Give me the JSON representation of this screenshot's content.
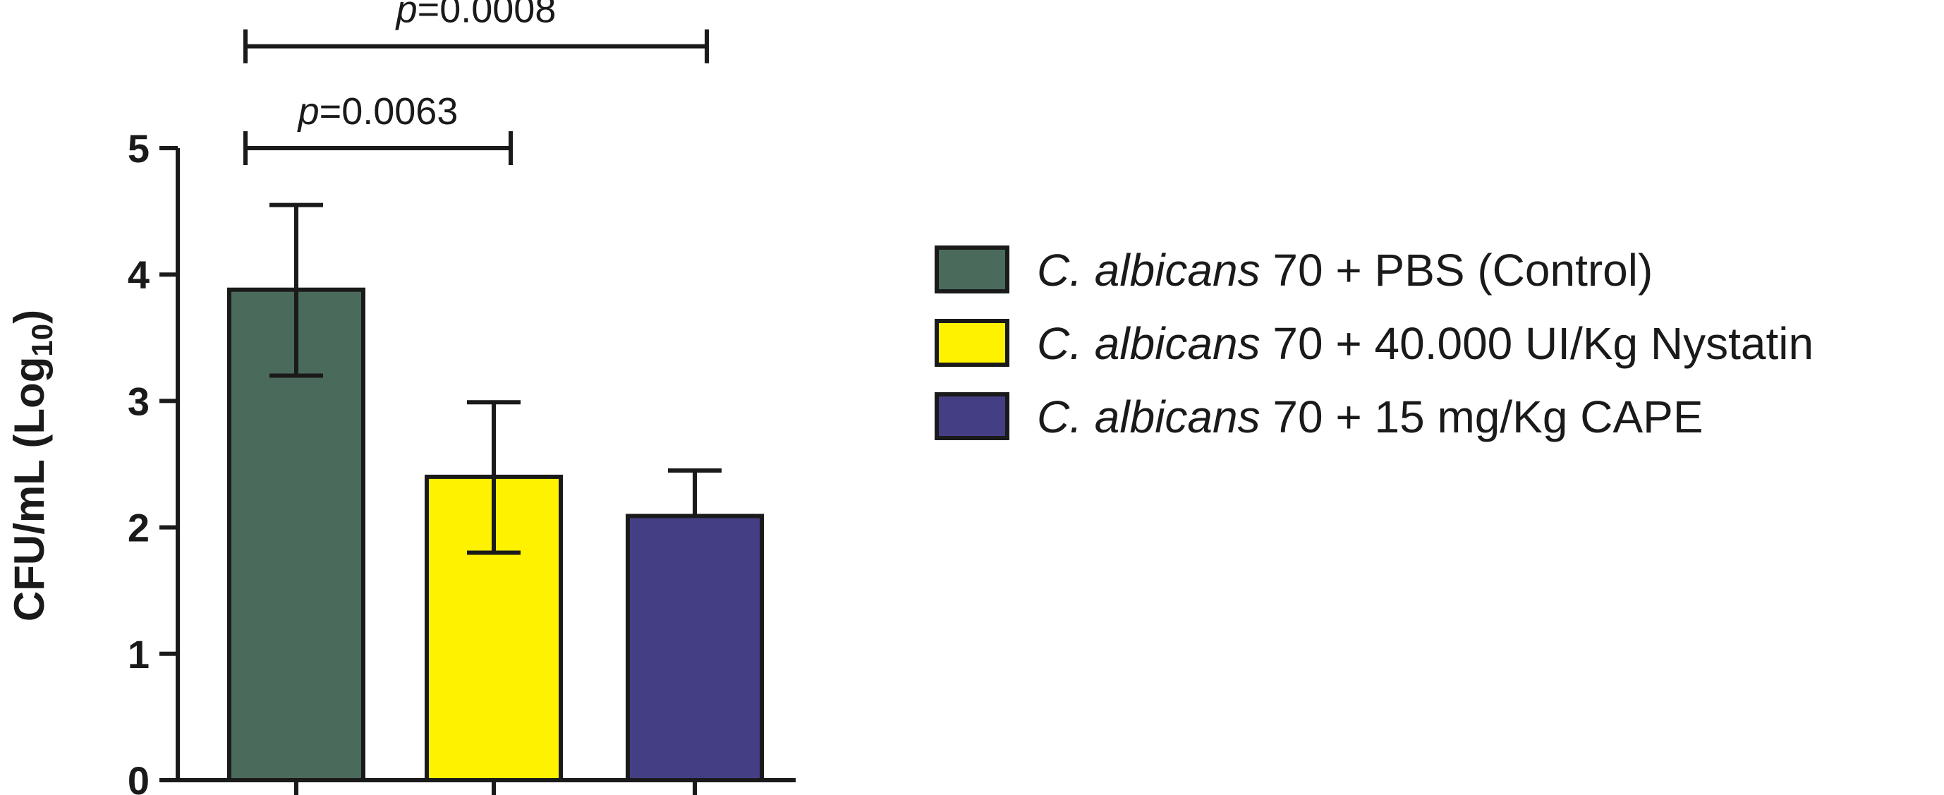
{
  "chart_data": {
    "type": "bar",
    "ylabel_main": "CFU/mL (Log",
    "ylabel_sub": "10",
    "ylabel_close": ")",
    "ylim": [
      0,
      5
    ],
    "yticks": [
      0,
      1,
      2,
      3,
      4,
      5
    ],
    "grid": false,
    "legend_position": "right",
    "series": [
      {
        "species": "C. albicans",
        "rest": " 70 + PBS (Control)",
        "value": 3.88,
        "err_low": 3.2,
        "err_high": 4.55,
        "color": "#4a6b5b"
      },
      {
        "species": "C. albicans",
        "rest": " 70 + 40.000 UI/Kg Nystatin",
        "value": 2.4,
        "err_low": 1.8,
        "err_high": 2.99,
        "color": "#fff200"
      },
      {
        "species": "C. albicans",
        "rest": " 70 + 15 mg/Kg CAPE",
        "value": 2.09,
        "err_low": 2.09,
        "err_high": 2.45,
        "color": "#443f85"
      }
    ],
    "annotations": [
      {
        "from": 0,
        "to": 1,
        "level": 5.0,
        "p_label": "p",
        "p_value": "=0.0063"
      },
      {
        "from": 0,
        "to": 2,
        "level": 5.75,
        "p_label": "p",
        "p_value": "=0.0008"
      }
    ]
  }
}
